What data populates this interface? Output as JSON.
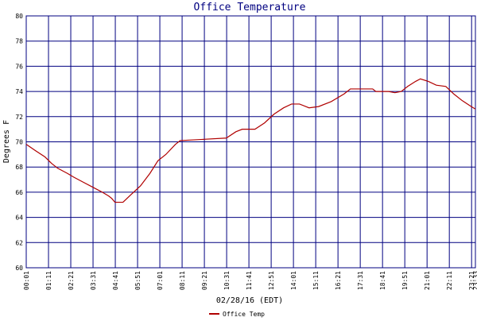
{
  "chart_data": {
    "type": "line",
    "title": "Office Temperature",
    "x_label": "02/28/16 (EDT)",
    "y_label": "Degrees F",
    "xlim": [
      1,
      1413
    ],
    "ylim": [
      60,
      80
    ],
    "xticks": [
      {
        "value": 1,
        "label": "00:01"
      },
      {
        "value": 71,
        "label": "01:11"
      },
      {
        "value": 141,
        "label": "02:21"
      },
      {
        "value": 211,
        "label": "03:31"
      },
      {
        "value": 281,
        "label": "04:41"
      },
      {
        "value": 351,
        "label": "05:51"
      },
      {
        "value": 421,
        "label": "07:01"
      },
      {
        "value": 491,
        "label": "08:11"
      },
      {
        "value": 561,
        "label": "09:21"
      },
      {
        "value": 631,
        "label": "10:31"
      },
      {
        "value": 701,
        "label": "11:41"
      },
      {
        "value": 771,
        "label": "12:51"
      },
      {
        "value": 841,
        "label": "14:01"
      },
      {
        "value": 911,
        "label": "15:11"
      },
      {
        "value": 981,
        "label": "16:21"
      },
      {
        "value": 1051,
        "label": "17:31"
      },
      {
        "value": 1121,
        "label": "18:41"
      },
      {
        "value": 1191,
        "label": "19:51"
      },
      {
        "value": 1261,
        "label": "21:01"
      },
      {
        "value": 1331,
        "label": "22:11"
      },
      {
        "value": 1401,
        "label": "23:21"
      },
      {
        "value": 1413,
        "label": "23:33"
      }
    ],
    "yticks": [
      60,
      62,
      64,
      66,
      68,
      70,
      72,
      74,
      76,
      78,
      80
    ],
    "grid": true,
    "x": [
      1,
      30,
      60,
      80,
      100,
      130,
      150,
      180,
      210,
      240,
      260,
      270,
      280,
      305,
      330,
      360,
      390,
      415,
      440,
      470,
      485,
      560,
      630,
      660,
      680,
      720,
      750,
      780,
      810,
      835,
      860,
      890,
      920,
      960,
      1000,
      1020,
      1090,
      1100,
      1140,
      1160,
      1180,
      1200,
      1225,
      1240,
      1265,
      1290,
      1320,
      1345,
      1370,
      1400,
      1413
    ],
    "series": [
      {
        "name": "Office Temp",
        "color": "#b00000",
        "values": [
          69.8,
          69.3,
          68.8,
          68.3,
          67.9,
          67.5,
          67.2,
          66.8,
          66.4,
          66.0,
          65.7,
          65.5,
          65.2,
          65.2,
          65.8,
          66.5,
          67.5,
          68.5,
          69.0,
          69.8,
          70.1,
          70.2,
          70.3,
          70.8,
          71.0,
          71.0,
          71.5,
          72.2,
          72.7,
          73.0,
          73.0,
          72.7,
          72.8,
          73.2,
          73.8,
          74.2,
          74.2,
          74.0,
          74.0,
          73.9,
          74.0,
          74.4,
          74.8,
          75.0,
          74.8,
          74.5,
          74.4,
          73.8,
          73.3,
          72.8,
          72.6
        ]
      }
    ]
  }
}
